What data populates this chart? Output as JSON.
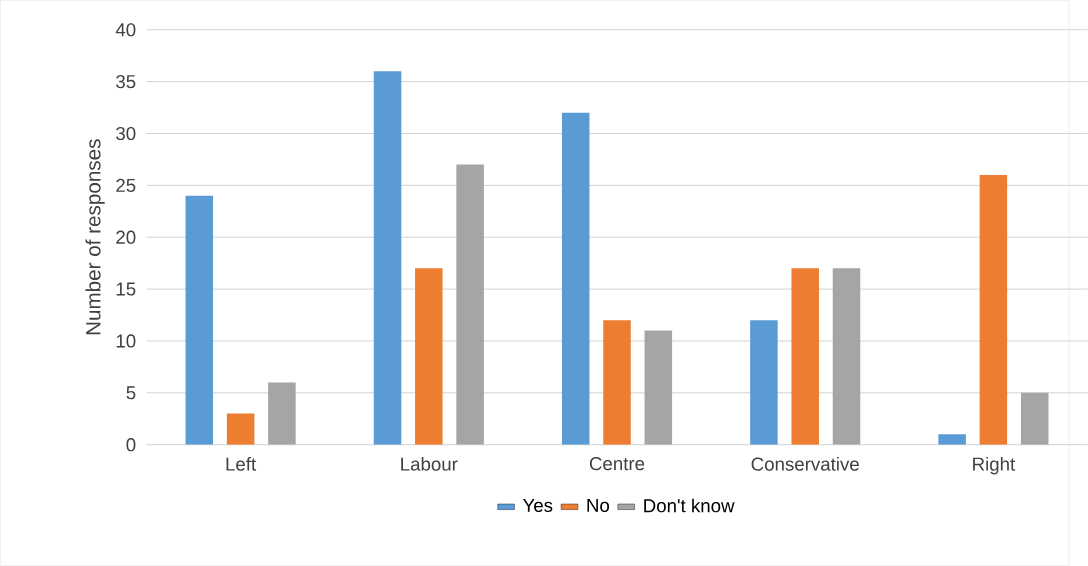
{
  "chart_data": {
    "type": "bar",
    "ylabel": "Number of responses",
    "categories": [
      "Left",
      "Labour",
      "Centre",
      "Conservative",
      "Right"
    ],
    "series": [
      {
        "name": "Yes",
        "color": "#5b9bd5",
        "values": [
          24,
          36,
          32,
          12,
          1
        ]
      },
      {
        "name": "No",
        "color": "#ed7d31",
        "values": [
          3,
          17,
          12,
          17,
          26
        ]
      },
      {
        "name": "Don't know",
        "color": "#a5a5a5",
        "values": [
          6,
          27,
          11,
          17,
          5
        ]
      }
    ],
    "ylim": [
      0,
      40
    ],
    "yticks": [
      0,
      5,
      10,
      15,
      20,
      25,
      30,
      35,
      40
    ],
    "grid": "y",
    "legend": "bottom"
  }
}
